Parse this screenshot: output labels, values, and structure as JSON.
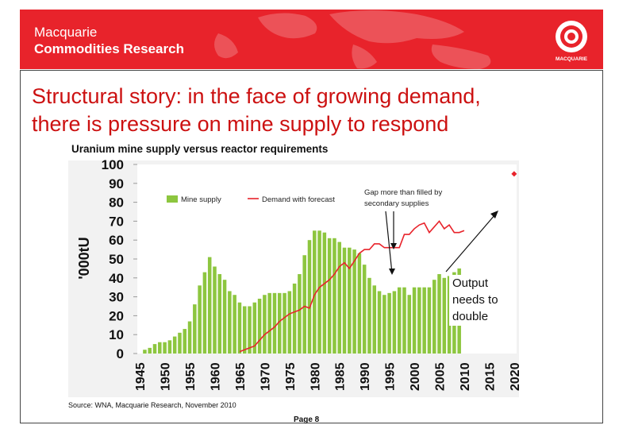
{
  "header": {
    "brand_line1": "Macquarie",
    "brand_line2": "Commodities Research",
    "logo_text": "MACQUARIE",
    "banner_color": "#e8232b"
  },
  "slide": {
    "title_line1": "Structural story: in the face of growing demand,",
    "title_line2": "there is pressure on mine supply to respond",
    "title_color": "#cc1111"
  },
  "chart_data": {
    "type": "bar",
    "title": "Uranium mine supply versus reactor requirements",
    "ylabel": "'000tU",
    "xlabel": "",
    "ylim": [
      0,
      100
    ],
    "yticks": [
      "0",
      "10",
      "20",
      "30",
      "40",
      "50",
      "60",
      "70",
      "80",
      "90",
      "100"
    ],
    "xlim": [
      1945,
      2020
    ],
    "xticks": [
      "1945",
      "1950",
      "1955",
      "1960",
      "1965",
      "1970",
      "1975",
      "1980",
      "1985",
      "1990",
      "1995",
      "2000",
      "2005",
      "2010",
      "2015",
      "2020"
    ],
    "legend_position": "top-left",
    "grid": false,
    "series": [
      {
        "name": "Mine supply",
        "kind": "bar",
        "color": "#8dc63f",
        "x": [
          1945,
          1946,
          1947,
          1948,
          1949,
          1950,
          1951,
          1952,
          1953,
          1954,
          1955,
          1956,
          1957,
          1958,
          1959,
          1960,
          1961,
          1962,
          1963,
          1964,
          1965,
          1966,
          1967,
          1968,
          1969,
          1970,
          1971,
          1972,
          1973,
          1974,
          1975,
          1976,
          1977,
          1978,
          1979,
          1980,
          1981,
          1982,
          1983,
          1984,
          1985,
          1986,
          1987,
          1988,
          1989,
          1990,
          1991,
          1992,
          1993,
          1994,
          1995,
          1996,
          1997,
          1998,
          1999,
          2000,
          2001,
          2002,
          2003,
          2004,
          2005,
          2006,
          2007,
          2008,
          2009
        ],
        "values": [
          0,
          2,
          3,
          5,
          6,
          6,
          7,
          9,
          11,
          13,
          17,
          26,
          36,
          43,
          51,
          46,
          42,
          39,
          33,
          31,
          27,
          25,
          25,
          27,
          29,
          31,
          32,
          32,
          32,
          32,
          33,
          37,
          42,
          52,
          60,
          65,
          65,
          64,
          61,
          61,
          59,
          56,
          56,
          55,
          53,
          47,
          40,
          36,
          33,
          31,
          32,
          33,
          35,
          35,
          31,
          35,
          35,
          35,
          35,
          39,
          42,
          40,
          41,
          43,
          45
        ]
      },
      {
        "name": "Demand with forecast",
        "kind": "line",
        "color": "#e8232b",
        "x": [
          1965,
          1966,
          1967,
          1968,
          1969,
          1970,
          1971,
          1972,
          1973,
          1974,
          1975,
          1976,
          1977,
          1978,
          1979,
          1980,
          1981,
          1982,
          1983,
          1984,
          1985,
          1986,
          1987,
          1988,
          1989,
          1990,
          1991,
          1992,
          1993,
          1994,
          1995,
          1996,
          1997,
          1998,
          1999,
          2000,
          2001,
          2002,
          2003,
          2004,
          2005,
          2006,
          2007,
          2008,
          2009,
          2010
        ],
        "values": [
          1,
          2,
          3,
          4,
          7,
          10,
          12,
          14,
          17,
          19,
          21,
          22,
          23,
          25,
          24,
          31,
          35,
          37,
          39,
          42,
          46,
          48,
          45,
          49,
          53,
          55,
          55,
          58,
          58,
          56,
          56,
          56,
          56,
          63,
          63,
          66,
          68,
          69,
          64,
          67,
          70,
          66,
          68,
          64,
          64,
          65
        ]
      }
    ],
    "annotations": {
      "gap": "Gap more than filled by secondary supplies",
      "output": "Output needs to double"
    },
    "target_marker_value": 95
  },
  "footer": {
    "source": "Source: WNA, Macquarie Research, November 2010",
    "page": "Page 8"
  }
}
